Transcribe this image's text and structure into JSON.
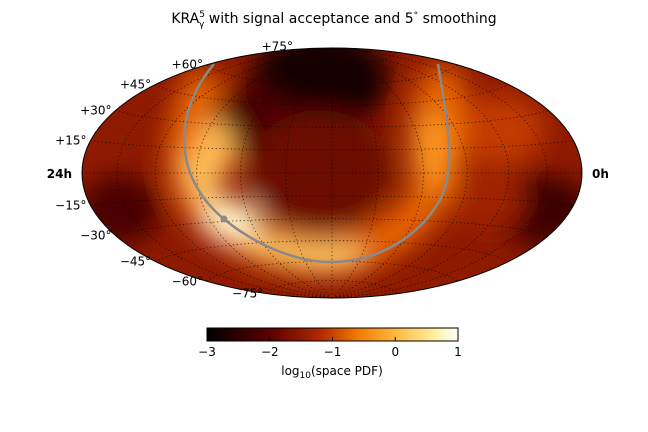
{
  "chart_data": {
    "type": "heatmap",
    "projection": "hammer-aitoff",
    "title": {
      "main": "KRA",
      "sup": "5",
      "sub": "γ",
      "rest": " with signal acceptance and 5",
      "deg": "°",
      "tail": " smoothing"
    },
    "ra_labels": {
      "left": "24h",
      "right": "0h"
    },
    "lat_labels": [
      {
        "lat": 75,
        "text": "+75°"
      },
      {
        "lat": 60,
        "text": "+60°"
      },
      {
        "lat": 45,
        "text": "+45°"
      },
      {
        "lat": 30,
        "text": "+30°"
      },
      {
        "lat": 15,
        "text": "+15°"
      },
      {
        "lat": -15,
        "text": "−15°"
      },
      {
        "lat": -30,
        "text": "−30°"
      },
      {
        "lat": -45,
        "text": "−45°"
      },
      {
        "lat": -60,
        "text": "−60°"
      },
      {
        "lat": -75,
        "text": "−75°"
      }
    ],
    "grid": true,
    "colorbar": {
      "label_main": "log",
      "label_sub": "10",
      "label_rest": "(space PDF)",
      "range": [
        -3,
        1
      ],
      "ticks": [
        {
          "value": -3,
          "label": "−3"
        },
        {
          "value": -2,
          "label": "−2"
        },
        {
          "value": -1,
          "label": "−1"
        },
        {
          "value": 0,
          "label": "0"
        },
        {
          "value": 1,
          "label": "1"
        }
      ],
      "colormap": "afmhot"
    },
    "galactic_plane_color": "#8a8a8a",
    "galactic_center_marker": {
      "ra_hours": 17.76,
      "dec_deg": -29.0
    }
  }
}
